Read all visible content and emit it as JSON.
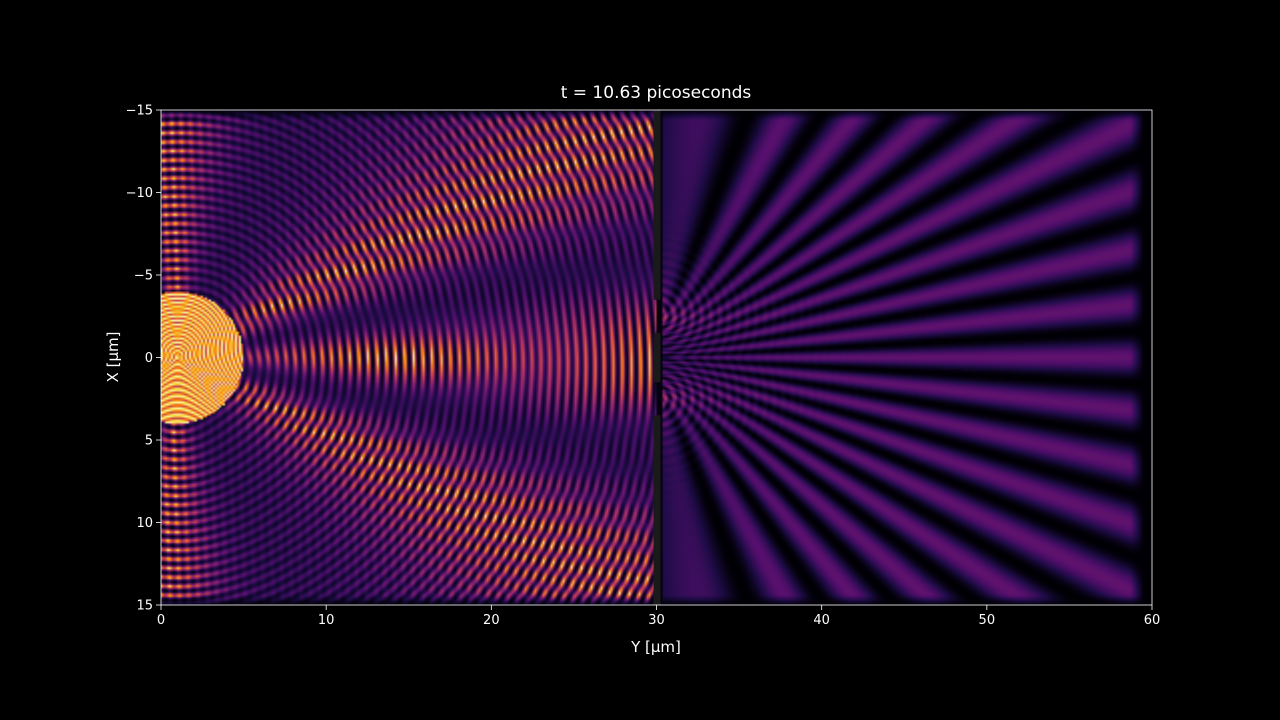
{
  "chart_data": {
    "type": "heatmap",
    "title": "t = 10.63 picoseconds",
    "xlabel": "Y [µm]",
    "ylabel": "X [µm]",
    "xlim": [
      0,
      60
    ],
    "ylim": [
      15,
      -15
    ],
    "x_ticks": [
      0,
      10,
      20,
      30,
      40,
      50,
      60
    ],
    "y_ticks": [
      -15,
      -10,
      -5,
      0,
      5,
      10,
      15
    ],
    "colormap": "inferno",
    "grid": false,
    "barrier": {
      "y_position": 30,
      "slits_x": [
        -2.5,
        2.5
      ]
    },
    "source": {
      "y": 1,
      "x": 0
    },
    "colors": {
      "background": "#000000",
      "frame": "#ffffff",
      "text": "#ffffff",
      "barrier": "#1a1a1a"
    }
  }
}
